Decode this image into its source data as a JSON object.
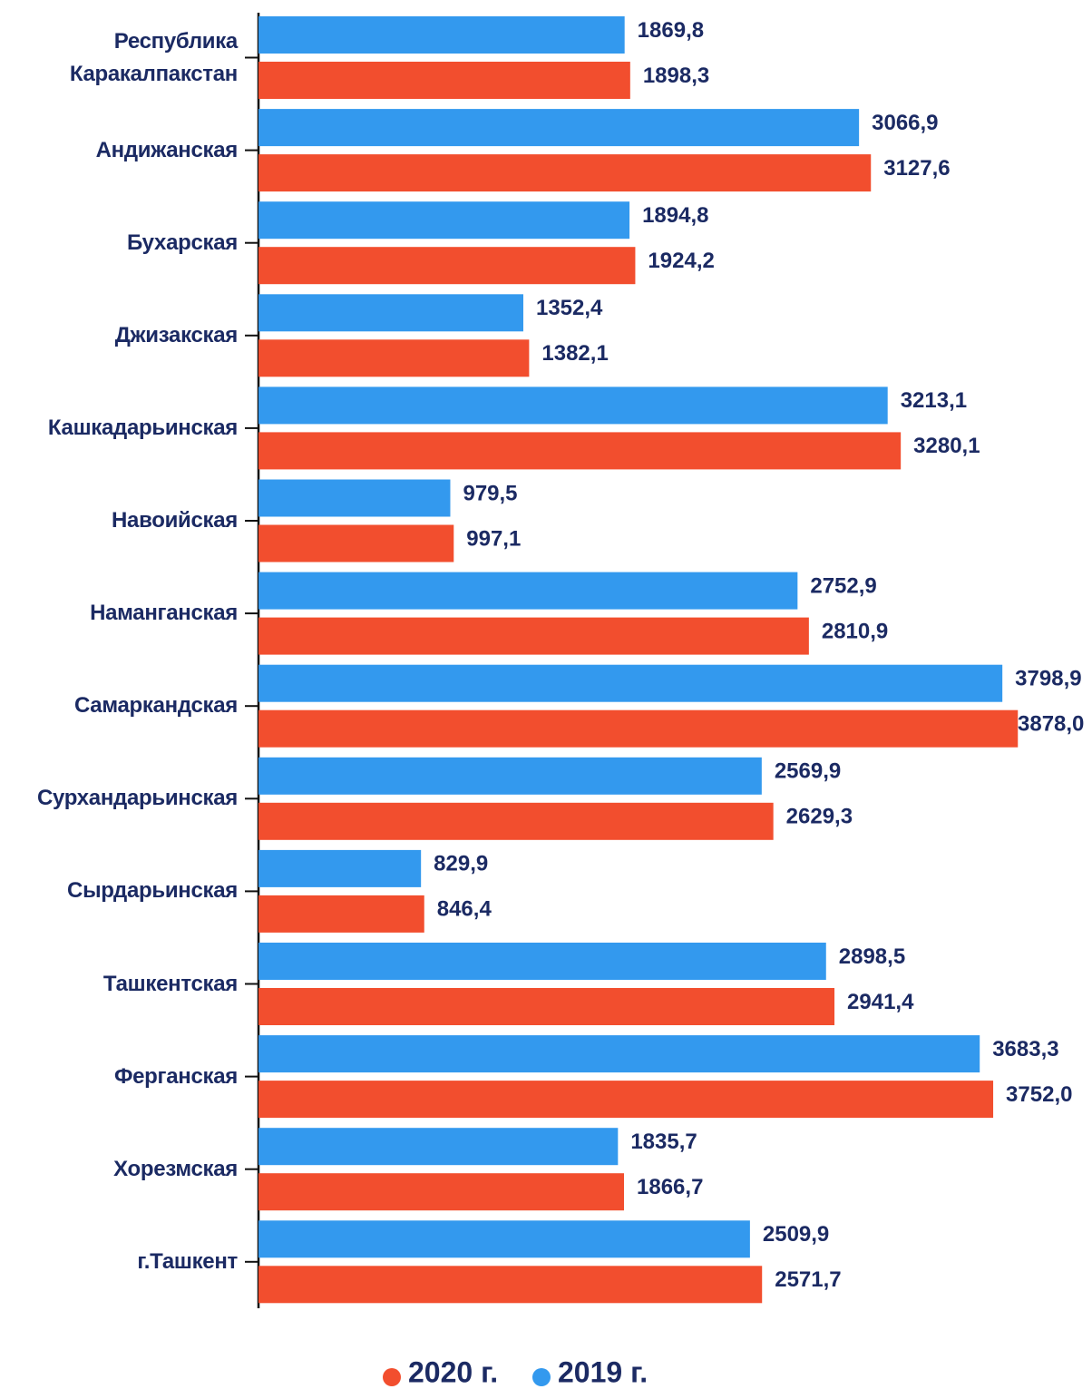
{
  "chart_data": {
    "type": "hbar",
    "categories": [
      "Республика Каракалпакстан",
      "Андижанская",
      "Бухарская",
      "Джизакская",
      "Кашкадарьинская",
      "Навоийская",
      "Наманганская",
      "Самаркандская",
      "Сурхандарьинская",
      "Сырдарьинская",
      "Ташкентская",
      "Ферганская",
      "Хорезмская",
      "г.Ташкент"
    ],
    "series": [
      {
        "name": "2019 г.",
        "color": "#3399ee",
        "values": [
          1869.8,
          3066.9,
          1894.8,
          1352.4,
          3213.1,
          979.5,
          2752.9,
          3798.9,
          2569.9,
          829.9,
          2898.5,
          3683.3,
          1835.7,
          2509.9
        ],
        "value_labels": [
          "1869,8",
          "3066,9",
          "1894,8",
          "1352,4",
          "3213,1",
          "979,5",
          "2752,9",
          "3798,9",
          "2569,9",
          "829,9",
          "2898,5",
          "3683,3",
          "1835,7",
          "2509,9"
        ]
      },
      {
        "name": "2020 г.",
        "color": "#f24e2e",
        "values": [
          1898.3,
          3127.6,
          1924.2,
          1382.1,
          3280.1,
          997.1,
          2810.9,
          3878.0,
          2629.3,
          846.4,
          2941.4,
          3752.0,
          1866.7,
          2571.7
        ],
        "value_labels": [
          "1898,3",
          "3127,6",
          "1924,2",
          "1382,1",
          "3280,1",
          "997,1",
          "2810,9",
          "3878,0",
          "2629,3",
          "846,4",
          "2941,4",
          "3752,0",
          "1866,7",
          "2571,7"
        ]
      }
    ],
    "xlim": [
      0,
      3900
    ]
  }
}
